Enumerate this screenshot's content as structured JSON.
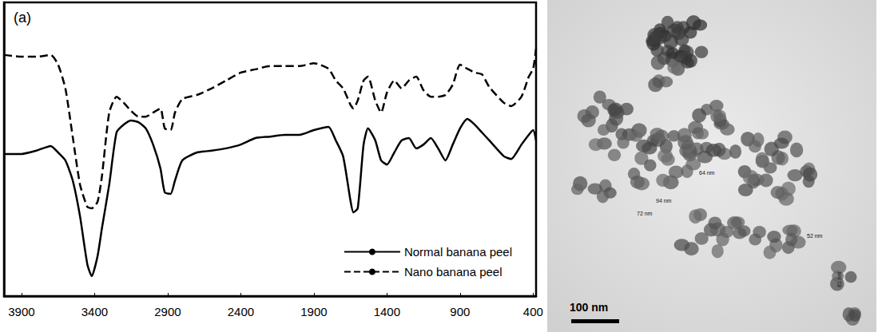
{
  "chart_data": {
    "type": "line",
    "panel_label": "(a)",
    "x": [
      4020,
      3900,
      3800,
      3700,
      3650,
      3600,
      3550,
      3500,
      3450,
      3420,
      3380,
      3350,
      3300,
      3250,
      3200,
      3150,
      3100,
      3050,
      3000,
      2950,
      2920,
      2880,
      2850,
      2800,
      2700,
      2600,
      2500,
      2400,
      2300,
      2200,
      2100,
      2000,
      1900,
      1800,
      1750,
      1700,
      1650,
      1630,
      1600,
      1560,
      1530,
      1480,
      1440,
      1400,
      1350,
      1300,
      1250,
      1200,
      1150,
      1100,
      1050,
      1000,
      950,
      900,
      850,
      800,
      750,
      700,
      600,
      550,
      480,
      430,
      400,
      380
    ],
    "series": [
      {
        "name": "Normal banana peel",
        "color": "#000000",
        "line_style": "solid",
        "values": [
          48.4,
          48.4,
          49.5,
          51.1,
          48.9,
          46.2,
          39.4,
          27.2,
          10.9,
          6.8,
          13.6,
          23.1,
          38.0,
          55.7,
          58.4,
          59.8,
          59.2,
          57.1,
          51.6,
          43.5,
          35.3,
          34.8,
          39.4,
          46.2,
          48.9,
          49.5,
          50.3,
          51.6,
          53.8,
          54.3,
          54.9,
          54.9,
          56.5,
          57.6,
          53.0,
          47.6,
          32.6,
          28.5,
          29.9,
          51.6,
          57.1,
          53.0,
          46.2,
          44.8,
          48.9,
          53.0,
          53.8,
          50.3,
          51.6,
          53.8,
          50.3,
          46.2,
          51.6,
          57.1,
          60.3,
          58.4,
          55.7,
          53.0,
          47.6,
          46.7,
          51.6,
          54.9,
          56.5,
          53.0
        ]
      },
      {
        "name": "Nano banana peel",
        "color": "#000000",
        "line_style": "dashed",
        "values": [
          82.1,
          81.5,
          81.5,
          82.1,
          78.8,
          70.7,
          54.3,
          38.0,
          30.4,
          29.9,
          32.1,
          40.8,
          62.5,
          67.9,
          65.8,
          63.0,
          61.1,
          61.1,
          62.5,
          63.9,
          57.1,
          56.5,
          62.5,
          67.1,
          68.5,
          70.7,
          73.4,
          76.1,
          77.2,
          78.3,
          78.3,
          78.3,
          79.3,
          77.4,
          73.4,
          70.7,
          65.2,
          63.9,
          66.6,
          73.4,
          74.7,
          66.6,
          62.5,
          69.3,
          73.4,
          70.7,
          73.4,
          74.7,
          70.1,
          67.9,
          67.9,
          68.5,
          72.0,
          78.8,
          77.4,
          76.1,
          75.5,
          71.2,
          65.8,
          64.7,
          67.9,
          74.7,
          77.4,
          84.2
        ]
      }
    ],
    "xlim": [
      380,
      4020
    ],
    "xticks": [
      3900,
      3400,
      2900,
      2400,
      1900,
      1400,
      900,
      400
    ],
    "ylim": [
      0,
      100
    ],
    "tick_labels": "x",
    "grid": false,
    "legend": "bottom-right"
  },
  "tem_image": {
    "scale_bar": {
      "label": "100 nm",
      "length_nm": 100
    },
    "measurements": [
      "64 nm",
      "94 nm",
      "72 nm",
      "52 nm",
      "81 nm"
    ]
  }
}
